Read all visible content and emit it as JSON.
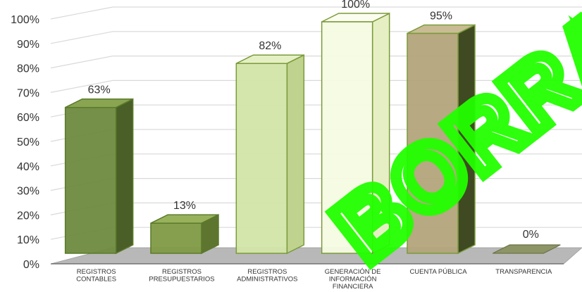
{
  "chart_data": {
    "type": "bar",
    "style": "3d-column",
    "categories": [
      [
        "REGISTROS",
        "CONTABLES"
      ],
      [
        "REGISTROS",
        "PRESUPUESTARIOS"
      ],
      [
        "REGISTROS",
        "ADMINISTRATIVOS"
      ],
      [
        "GENERACIÓN DE",
        "INFORMACIÓN",
        "FINANCIERA"
      ],
      [
        "CUENTA PÚBLICA"
      ],
      [
        "TRANSPARENCIA"
      ]
    ],
    "values": [
      63,
      13,
      82,
      100,
      95,
      0
    ],
    "data_labels": [
      "63%",
      "13%",
      "82%",
      "100%",
      "95%",
      "0%"
    ],
    "yticks": [
      "0%",
      "10%",
      "20%",
      "30%",
      "40%",
      "50%",
      "60%",
      "70%",
      "80%",
      "90%",
      "100%"
    ],
    "ylim": [
      0,
      100
    ],
    "grid": true,
    "legend": "none",
    "colors": {
      "bars": [
        {
          "front": "#6e8a3e",
          "side": "#4a5e28",
          "top": "#8aa552",
          "stroke": "#5a7a2a"
        },
        {
          "front": "#7f9a45",
          "side": "#5e7530",
          "top": "#98b25c",
          "stroke": "#5a7a2a"
        },
        {
          "front": "#d3e5a8",
          "side": "#bfd38e",
          "top": "#e4f0c4",
          "stroke": "#7a9a3a"
        },
        {
          "front": "#f6fbe2",
          "side": "#e6efc4",
          "top": "#fbfdf0",
          "stroke": "#7a9a3a"
        },
        {
          "front": "#b3a47a",
          "side": "#3f4a22",
          "top": "#c9bc94",
          "stroke": "#7a9a3a"
        },
        {
          "front": "#8d9466",
          "side": "#6b7349",
          "top": "#a3a97f",
          "stroke": "#6b7349"
        }
      ],
      "floor": "#b8b8b8",
      "grid": "#d9d9d9",
      "watermark": "#22ff00"
    },
    "watermark": {
      "text": "BORRADOR",
      "color": "#22ff00",
      "style": "diagonal-stamp"
    }
  }
}
